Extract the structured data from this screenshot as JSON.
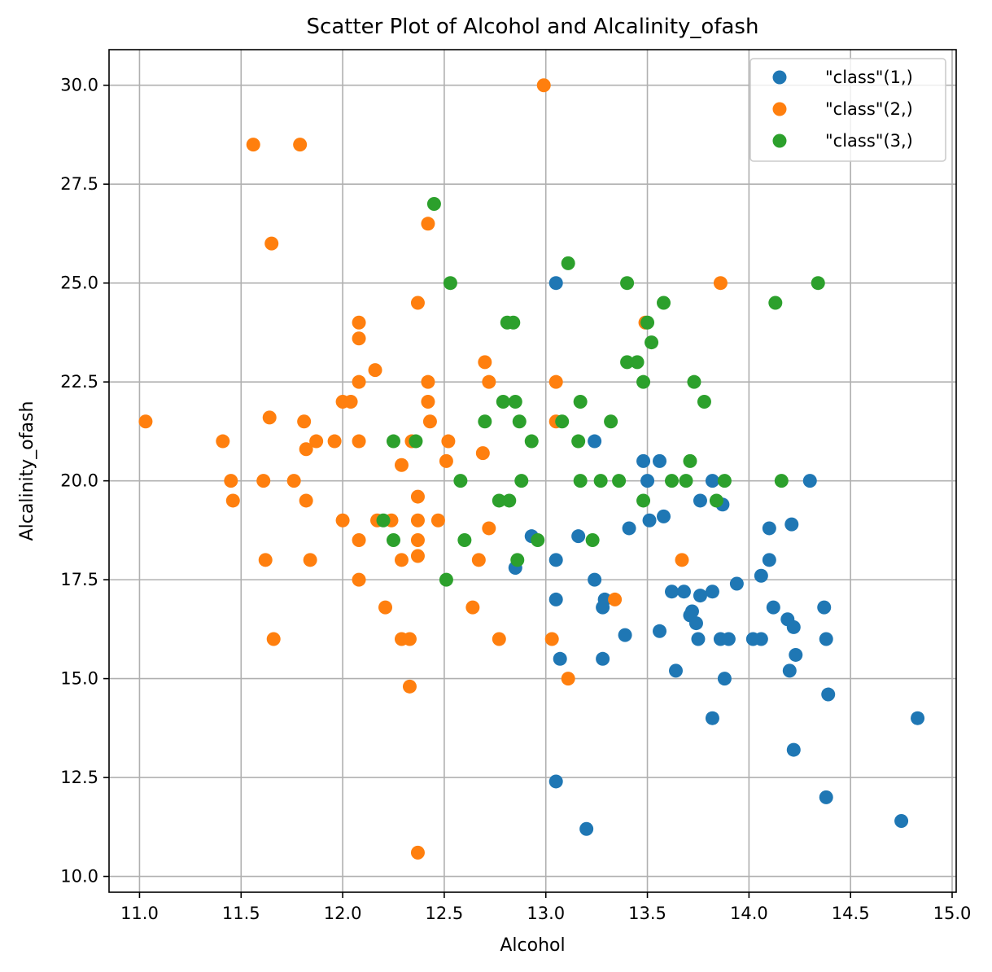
{
  "chart_data": {
    "type": "scatter",
    "title": "Scatter Plot of Alcohol and Alcalinity_ofash",
    "xlabel": "Alcohol",
    "ylabel": "Alcalinity_ofash",
    "xlim": [
      10.85,
      15.02
    ],
    "ylim": [
      9.6,
      30.9
    ],
    "xticks": [
      "11.0",
      "11.5",
      "12.0",
      "12.5",
      "13.0",
      "13.5",
      "14.0",
      "14.5",
      "15.0"
    ],
    "yticks": [
      "10.0",
      "12.5",
      "15.0",
      "17.5",
      "20.0",
      "22.5",
      "25.0",
      "27.5",
      "30.0"
    ],
    "grid": true,
    "legend_position": "top-right",
    "series": [
      {
        "name": "\"class\"(1,)",
        "color": "#1f77b4",
        "points": [
          [
            13.05,
            25.0
          ],
          [
            13.24,
            21.0
          ],
          [
            13.48,
            20.5
          ],
          [
            13.56,
            20.5
          ],
          [
            13.5,
            20.0
          ],
          [
            13.82,
            20.0
          ],
          [
            14.3,
            20.0
          ],
          [
            13.76,
            19.5
          ],
          [
            13.87,
            19.4
          ],
          [
            13.51,
            19.0
          ],
          [
            13.58,
            19.1
          ],
          [
            14.21,
            18.9
          ],
          [
            14.1,
            18.8
          ],
          [
            13.41,
            18.8
          ],
          [
            12.93,
            18.6
          ],
          [
            13.16,
            18.6
          ],
          [
            14.1,
            18.0
          ],
          [
            13.05,
            18.0
          ],
          [
            12.85,
            17.8
          ],
          [
            14.06,
            17.6
          ],
          [
            13.24,
            17.5
          ],
          [
            13.94,
            17.4
          ],
          [
            13.62,
            17.2
          ],
          [
            13.68,
            17.2
          ],
          [
            13.82,
            17.2
          ],
          [
            13.76,
            17.1
          ],
          [
            13.29,
            17.0
          ],
          [
            13.05,
            17.0
          ],
          [
            13.28,
            16.8
          ],
          [
            14.12,
            16.8
          ],
          [
            14.37,
            16.8
          ],
          [
            13.72,
            16.7
          ],
          [
            13.71,
            16.6
          ],
          [
            14.19,
            16.5
          ],
          [
            13.74,
            16.4
          ],
          [
            14.22,
            16.3
          ],
          [
            13.56,
            16.2
          ],
          [
            13.39,
            16.1
          ],
          [
            13.75,
            16.0
          ],
          [
            13.86,
            16.0
          ],
          [
            13.9,
            16.0
          ],
          [
            14.02,
            16.0
          ],
          [
            14.06,
            16.0
          ],
          [
            14.38,
            16.0
          ],
          [
            14.23,
            15.6
          ],
          [
            13.07,
            15.5
          ],
          [
            13.28,
            15.5
          ],
          [
            13.64,
            15.2
          ],
          [
            14.2,
            15.2
          ],
          [
            13.88,
            15.0
          ],
          [
            14.39,
            14.6
          ],
          [
            13.82,
            14.0
          ],
          [
            14.83,
            14.0
          ],
          [
            14.22,
            13.2
          ],
          [
            13.05,
            12.4
          ],
          [
            14.38,
            12.0
          ],
          [
            14.75,
            11.4
          ],
          [
            13.2,
            11.2
          ]
        ]
      },
      {
        "name": "\"class\"(2,)",
        "color": "#ff7f0e",
        "points": [
          [
            12.99,
            30.0
          ],
          [
            11.56,
            28.5
          ],
          [
            11.79,
            28.5
          ],
          [
            12.42,
            26.5
          ],
          [
            11.65,
            26.0
          ],
          [
            13.86,
            25.0
          ],
          [
            12.37,
            24.5
          ],
          [
            12.08,
            24.0
          ],
          [
            13.49,
            24.0
          ],
          [
            12.08,
            23.6
          ],
          [
            12.7,
            23.0
          ],
          [
            12.16,
            22.8
          ],
          [
            12.08,
            22.5
          ],
          [
            12.42,
            22.5
          ],
          [
            12.72,
            22.5
          ],
          [
            13.05,
            22.5
          ],
          [
            12.0,
            22.0
          ],
          [
            12.04,
            22.0
          ],
          [
            12.42,
            22.0
          ],
          [
            11.03,
            21.5
          ],
          [
            11.81,
            21.5
          ],
          [
            12.43,
            21.5
          ],
          [
            13.05,
            21.5
          ],
          [
            11.64,
            21.6
          ],
          [
            11.41,
            21.0
          ],
          [
            11.87,
            21.0
          ],
          [
            11.96,
            21.0
          ],
          [
            12.08,
            21.0
          ],
          [
            12.34,
            21.0
          ],
          [
            12.52,
            21.0
          ],
          [
            11.82,
            20.8
          ],
          [
            12.69,
            20.7
          ],
          [
            12.51,
            20.5
          ],
          [
            12.29,
            20.4
          ],
          [
            11.45,
            20.0
          ],
          [
            11.61,
            20.0
          ],
          [
            11.76,
            20.0
          ],
          [
            12.37,
            19.6
          ],
          [
            11.46,
            19.5
          ],
          [
            11.82,
            19.5
          ],
          [
            12.0,
            19.0
          ],
          [
            12.17,
            19.0
          ],
          [
            12.24,
            19.0
          ],
          [
            12.37,
            19.0
          ],
          [
            12.47,
            19.0
          ],
          [
            12.72,
            18.8
          ],
          [
            12.08,
            18.5
          ],
          [
            12.37,
            18.5
          ],
          [
            12.37,
            18.1
          ],
          [
            11.62,
            18.0
          ],
          [
            11.84,
            18.0
          ],
          [
            12.29,
            18.0
          ],
          [
            12.67,
            18.0
          ],
          [
            13.67,
            18.0
          ],
          [
            12.08,
            17.5
          ],
          [
            13.34,
            17.0
          ],
          [
            12.21,
            16.8
          ],
          [
            12.64,
            16.8
          ],
          [
            11.66,
            16.0
          ],
          [
            12.29,
            16.0
          ],
          [
            12.33,
            16.0
          ],
          [
            12.77,
            16.0
          ],
          [
            13.03,
            16.0
          ],
          [
            13.11,
            15.0
          ],
          [
            12.33,
            14.8
          ],
          [
            12.37,
            10.6
          ]
        ]
      },
      {
        "name": "\"class\"(3,)",
        "color": "#2ca02c",
        "points": [
          [
            12.45,
            27.0
          ],
          [
            13.11,
            25.5
          ],
          [
            12.53,
            25.0
          ],
          [
            13.4,
            25.0
          ],
          [
            14.34,
            25.0
          ],
          [
            13.58,
            24.5
          ],
          [
            14.13,
            24.5
          ],
          [
            12.81,
            24.0
          ],
          [
            12.84,
            24.0
          ],
          [
            13.5,
            24.0
          ],
          [
            13.52,
            23.5
          ],
          [
            13.4,
            23.0
          ],
          [
            13.45,
            23.0
          ],
          [
            13.48,
            22.5
          ],
          [
            13.73,
            22.5
          ],
          [
            13.17,
            22.0
          ],
          [
            12.79,
            22.0
          ],
          [
            12.85,
            22.0
          ],
          [
            13.78,
            22.0
          ],
          [
            12.7,
            21.5
          ],
          [
            12.87,
            21.5
          ],
          [
            13.08,
            21.5
          ],
          [
            13.32,
            21.5
          ],
          [
            12.25,
            21.0
          ],
          [
            12.36,
            21.0
          ],
          [
            12.93,
            21.0
          ],
          [
            13.16,
            21.0
          ],
          [
            13.71,
            20.5
          ],
          [
            12.58,
            20.0
          ],
          [
            12.88,
            20.0
          ],
          [
            13.17,
            20.0
          ],
          [
            13.27,
            20.0
          ],
          [
            13.36,
            20.0
          ],
          [
            13.62,
            20.0
          ],
          [
            13.69,
            20.0
          ],
          [
            13.88,
            20.0
          ],
          [
            14.16,
            20.0
          ],
          [
            12.77,
            19.5
          ],
          [
            12.82,
            19.5
          ],
          [
            13.48,
            19.5
          ],
          [
            13.84,
            19.5
          ],
          [
            12.2,
            19.0
          ],
          [
            12.25,
            18.5
          ],
          [
            12.6,
            18.5
          ],
          [
            12.96,
            18.5
          ],
          [
            13.23,
            18.5
          ],
          [
            12.86,
            18.0
          ],
          [
            12.51,
            17.5
          ]
        ]
      }
    ]
  }
}
